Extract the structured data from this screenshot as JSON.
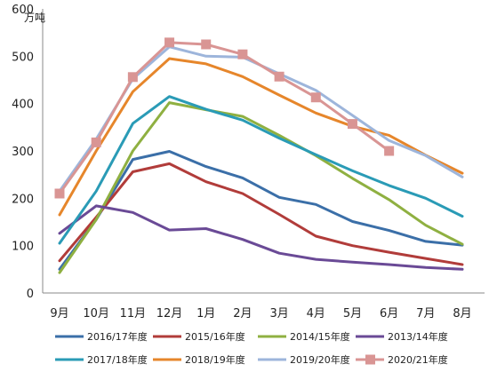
{
  "chart_data": {
    "type": "line",
    "title": "",
    "xlabel": "",
    "ylabel": "万吨",
    "ylim": [
      0,
      600
    ],
    "yticks": [
      0,
      100,
      200,
      300,
      400,
      500,
      600
    ],
    "grid": false,
    "legend_position": "bottom",
    "categories": [
      "9月",
      "10月",
      "11月",
      "12月",
      "1月",
      "2月",
      "3月",
      "4月",
      "5月",
      "6月",
      "7月",
      "8月"
    ],
    "series": [
      {
        "name": "2016/17年度",
        "color": "#3B6FA8",
        "marker": "none",
        "values": [
          50,
          155,
          282,
          299,
          267,
          243,
          202,
          187,
          151,
          132,
          109,
          101
        ]
      },
      {
        "name": "2015/16年度",
        "color": "#B13C3A",
        "marker": "none",
        "values": [
          68,
          160,
          256,
          273,
          235,
          210,
          166,
          120,
          100,
          86,
          73,
          60
        ]
      },
      {
        "name": "2014/15年度",
        "color": "#8FB041",
        "marker": "none",
        "values": [
          43,
          155,
          300,
          402,
          387,
          373,
          333,
          290,
          242,
          197,
          143,
          103
        ]
      },
      {
        "name": "2013/14年度",
        "color": "#6A4A96",
        "marker": "none",
        "values": [
          126,
          184,
          170,
          133,
          136,
          113,
          84,
          71,
          65,
          60,
          54,
          50
        ]
      },
      {
        "name": "2017/18年度",
        "color": "#2A9BB6",
        "marker": "none",
        "values": [
          105,
          215,
          358,
          415,
          388,
          365,
          327,
          292,
          258,
          227,
          200,
          162
        ]
      },
      {
        "name": "2018/19年度",
        "color": "#E6862B",
        "marker": "none",
        "values": [
          165,
          300,
          425,
          495,
          484,
          457,
          418,
          380,
          352,
          333,
          291,
          253
        ]
      },
      {
        "name": "2019/20年度",
        "color": "#9DB5DB",
        "marker": "none",
        "values": [
          215,
          325,
          452,
          520,
          500,
          498,
          463,
          428,
          375,
          322,
          290,
          245
        ]
      },
      {
        "name": "2020/21年度",
        "color": "#D99594",
        "marker": "square",
        "values": [
          210,
          318,
          456,
          529,
          525,
          504,
          457,
          413,
          357,
          300,
          null,
          null
        ]
      }
    ]
  }
}
